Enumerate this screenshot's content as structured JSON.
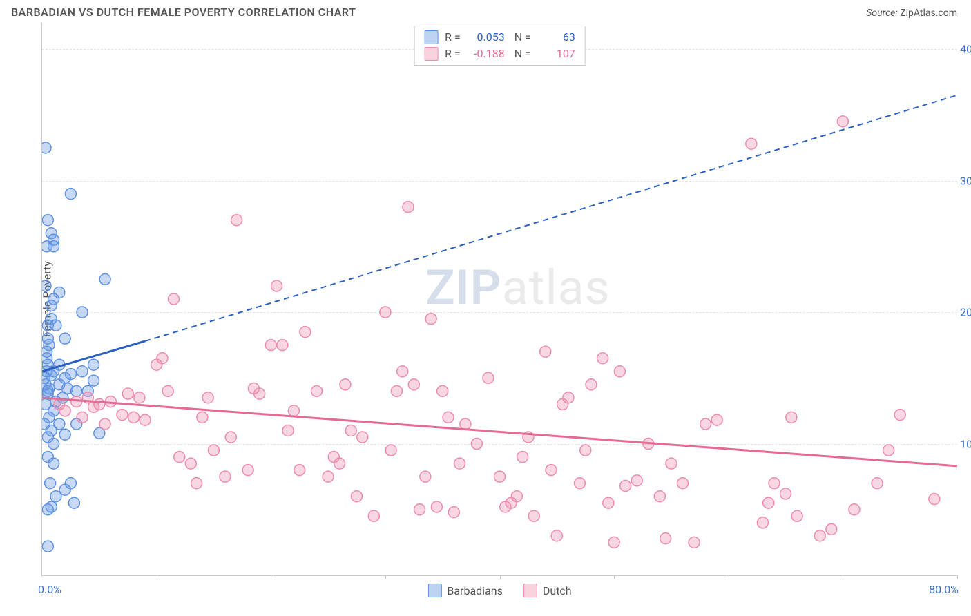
{
  "title": "BARBADIAN VS DUTCH FEMALE POVERTY CORRELATION CHART",
  "source_label": "Source:",
  "source_value": "ZipAtlas.com",
  "yaxis_title": "Female Poverty",
  "watermark_zip": "ZIP",
  "watermark_rest": "atlas",
  "chart": {
    "type": "scatter",
    "xlim": [
      0,
      80
    ],
    "ylim": [
      0,
      42
    ],
    "xtick_positions": [
      10,
      20,
      30,
      40,
      50,
      60,
      70,
      80
    ],
    "ytick_positions": [
      10,
      20,
      30,
      40
    ],
    "ytick_labels": [
      "10.0%",
      "20.0%",
      "30.0%",
      "40.0%"
    ],
    "x_origin_label": "0.0%",
    "xmax_label": "80.0%",
    "background_color": "#ffffff",
    "grid_color": "#e3e3e3",
    "axis_color": "#c9c9c9",
    "value_color": "#3b6fc9",
    "marker_radius": 8,
    "series": [
      {
        "name": "Barbadians",
        "color_fill": "rgba(94, 146, 227, 0.35)",
        "color_stroke": "#5e92e3",
        "swatch_fill": "#bcd4f2",
        "swatch_border": "#5e92e3",
        "R": "0.053",
        "N": "63",
        "trend": {
          "solid": {
            "x1": 0,
            "y1": 15.5,
            "x2": 9,
            "y2": 17.8
          },
          "dashed": {
            "x1": 9,
            "y1": 17.8,
            "x2": 80,
            "y2": 36.5
          },
          "color": "#2b5fc1",
          "width": 3
        },
        "points": [
          [
            0.2,
            15
          ],
          [
            0.3,
            14.5
          ],
          [
            0.5,
            16
          ],
          [
            0.5,
            13.8
          ],
          [
            0.4,
            15.5
          ],
          [
            0.6,
            14.2
          ],
          [
            0.8,
            15.2
          ],
          [
            1.0,
            15.5
          ],
          [
            1.2,
            13.2
          ],
          [
            1.5,
            14.5
          ],
          [
            1.5,
            16
          ],
          [
            0.5,
            18
          ],
          [
            0.8,
            20.5
          ],
          [
            1.0,
            21
          ],
          [
            1.5,
            21.5
          ],
          [
            0.3,
            22
          ],
          [
            0.4,
            17
          ],
          [
            0.6,
            17.5
          ],
          [
            2.0,
            15
          ],
          [
            2.2,
            14.2
          ],
          [
            2.5,
            15.3
          ],
          [
            0.5,
            10.5
          ],
          [
            0.8,
            11
          ],
          [
            1.0,
            10
          ],
          [
            1.5,
            11.5
          ],
          [
            1.0,
            12.5
          ],
          [
            2.0,
            10.7
          ],
          [
            0.5,
            9
          ],
          [
            1.0,
            8.5
          ],
          [
            2.0,
            6.5
          ],
          [
            2.5,
            7
          ],
          [
            2.8,
            5.5
          ],
          [
            0.8,
            5.2
          ],
          [
            0.5,
            2.2
          ],
          [
            0.4,
            25
          ],
          [
            0.8,
            26
          ],
          [
            1.0,
            25.5
          ],
          [
            2.5,
            29
          ],
          [
            0.3,
            32.5
          ],
          [
            5.5,
            22.5
          ],
          [
            5.0,
            10.8
          ],
          [
            4.5,
            16
          ],
          [
            3.5,
            15.5
          ],
          [
            3.0,
            14
          ],
          [
            3.5,
            20
          ],
          [
            0.5,
            19
          ],
          [
            0.8,
            19.5
          ],
          [
            1.2,
            19
          ],
          [
            0.3,
            13
          ],
          [
            0.6,
            12
          ],
          [
            1.8,
            13.5
          ],
          [
            0.4,
            16.5
          ],
          [
            0.2,
            11.5
          ],
          [
            0.5,
            14
          ],
          [
            0.7,
            7
          ],
          [
            1.2,
            6
          ],
          [
            0.5,
            5
          ],
          [
            4.0,
            14
          ],
          [
            4.5,
            14.8
          ],
          [
            3.0,
            11.5
          ],
          [
            2.0,
            18
          ],
          [
            1.0,
            25
          ],
          [
            0.5,
            27
          ]
        ]
      },
      {
        "name": "Dutch",
        "color_fill": "rgba(237, 139, 171, 0.35)",
        "color_stroke": "#ed8bab",
        "swatch_fill": "#f9d2de",
        "swatch_border": "#ed8bab",
        "R": "-0.188",
        "N": "107",
        "trend": {
          "solid": {
            "x1": 0,
            "y1": 13.5,
            "x2": 80,
            "y2": 8.3
          },
          "dashed": null,
          "color": "#e56a94",
          "width": 3
        },
        "points": [
          [
            1.5,
            13
          ],
          [
            2.0,
            12.5
          ],
          [
            3.0,
            13.2
          ],
          [
            3.5,
            12
          ],
          [
            4.0,
            13.5
          ],
          [
            4.5,
            12.8
          ],
          [
            5.0,
            13
          ],
          [
            5.5,
            11.5
          ],
          [
            6.0,
            13.2
          ],
          [
            7.0,
            12.2
          ],
          [
            7.5,
            13.8
          ],
          [
            8.0,
            12
          ],
          [
            8.5,
            13.5
          ],
          [
            9.0,
            11.8
          ],
          [
            10,
            16
          ],
          [
            10.5,
            16.5
          ],
          [
            11,
            14
          ],
          [
            11.5,
            21
          ],
          [
            12,
            9
          ],
          [
            13,
            8.5
          ],
          [
            13.5,
            7
          ],
          [
            14,
            12
          ],
          [
            14.5,
            13.5
          ],
          [
            15,
            9.5
          ],
          [
            16,
            7.5
          ],
          [
            16.5,
            10.5
          ],
          [
            17,
            27
          ],
          [
            18,
            8
          ],
          [
            18.5,
            14.2
          ],
          [
            19,
            13.8
          ],
          [
            20,
            17.5
          ],
          [
            20.5,
            22
          ],
          [
            21,
            17.5
          ],
          [
            21.5,
            11
          ],
          [
            22,
            12.5
          ],
          [
            22.5,
            8
          ],
          [
            23,
            18.5
          ],
          [
            24,
            14
          ],
          [
            25,
            7.5
          ],
          [
            25.5,
            9
          ],
          [
            26,
            8.5
          ],
          [
            26.5,
            14.5
          ],
          [
            27,
            11
          ],
          [
            27.5,
            6
          ],
          [
            28,
            10.5
          ],
          [
            29,
            4.5
          ],
          [
            30,
            20
          ],
          [
            30.5,
            9.5
          ],
          [
            31,
            14
          ],
          [
            31.5,
            15.5
          ],
          [
            32,
            28
          ],
          [
            32.5,
            14.5
          ],
          [
            33,
            5
          ],
          [
            33.5,
            7.5
          ],
          [
            34,
            19.5
          ],
          [
            34.5,
            5.2
          ],
          [
            35,
            14
          ],
          [
            35.5,
            12
          ],
          [
            36,
            4.8
          ],
          [
            36.5,
            8.5
          ],
          [
            37,
            11.5
          ],
          [
            38,
            10
          ],
          [
            39,
            15
          ],
          [
            40,
            7.5
          ],
          [
            40.5,
            5.2
          ],
          [
            41,
            5.5
          ],
          [
            41.5,
            6
          ],
          [
            42,
            9
          ],
          [
            42.5,
            10.5
          ],
          [
            43,
            4.5
          ],
          [
            44,
            17
          ],
          [
            44.5,
            8
          ],
          [
            45,
            3
          ],
          [
            45.5,
            13
          ],
          [
            46,
            13.5
          ],
          [
            47,
            7
          ],
          [
            47.5,
            9.5
          ],
          [
            48,
            14.5
          ],
          [
            49,
            16.5
          ],
          [
            49.5,
            5.5
          ],
          [
            50,
            2.5
          ],
          [
            50.5,
            15.5
          ],
          [
            51,
            6.8
          ],
          [
            52,
            7.2
          ],
          [
            53,
            10
          ],
          [
            54,
            6
          ],
          [
            54.5,
            2.8
          ],
          [
            55,
            8.5
          ],
          [
            56,
            7
          ],
          [
            57,
            2.5
          ],
          [
            58,
            11.5
          ],
          [
            59,
            11.8
          ],
          [
            62,
            32.8
          ],
          [
            63,
            4
          ],
          [
            63.5,
            5.5
          ],
          [
            64,
            7
          ],
          [
            65,
            6.2
          ],
          [
            65.5,
            12
          ],
          [
            66,
            4.5
          ],
          [
            68,
            3
          ],
          [
            69,
            3.5
          ],
          [
            70,
            34.5
          ],
          [
            71,
            5
          ],
          [
            73,
            7
          ],
          [
            74,
            9.5
          ],
          [
            75,
            12.2
          ],
          [
            78,
            5.8
          ]
        ]
      }
    ]
  },
  "legend": {
    "item1": "Barbadians",
    "item2": "Dutch"
  }
}
